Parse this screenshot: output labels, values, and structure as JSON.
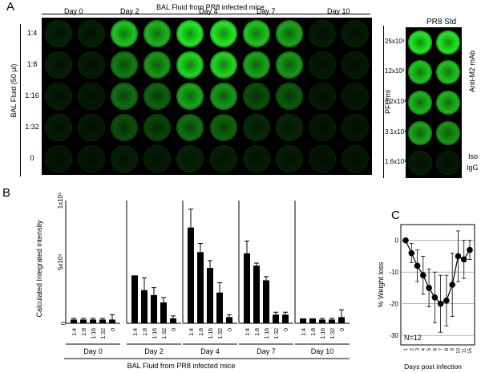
{
  "panels": {
    "a": "A",
    "b": "B",
    "c": "C"
  },
  "panel_a": {
    "header": "BAL Fluid from PR8 infected mice",
    "y_label": "BAL Fluid (50 µl)",
    "days": [
      "Day 0",
      "Day 2",
      "Day 4",
      "Day 7",
      "Day 10"
    ],
    "rows": [
      "1:4",
      "1:8",
      "1:16",
      "1:32",
      "0"
    ],
    "well_intensity": [
      [
        0.15,
        0.12,
        0.85,
        0.8,
        0.95,
        0.95,
        0.85,
        0.75,
        0.1,
        0.1
      ],
      [
        0.12,
        0.1,
        0.6,
        0.7,
        0.9,
        0.9,
        0.75,
        0.7,
        0.08,
        0.08
      ],
      [
        0.1,
        0.08,
        0.55,
        0.5,
        0.75,
        0.7,
        0.4,
        0.45,
        0.07,
        0.07
      ],
      [
        0.1,
        0.08,
        0.4,
        0.35,
        0.55,
        0.5,
        0.2,
        0.18,
        0.06,
        0.06
      ],
      [
        0.06,
        0.06,
        0.12,
        0.1,
        0.15,
        0.12,
        0.1,
        0.1,
        0.05,
        0.06
      ]
    ]
  },
  "panel_a_std": {
    "header": "PR8 Std",
    "pfu_label": "PFU/ml",
    "conc": [
      "25x10³",
      "12x10³",
      "6.2x10³",
      "3.1x10³",
      "1.6x10³"
    ],
    "anti_label": "Anti-M2 mAb",
    "iso_label_1": "Iso",
    "iso_label_2": "IgG",
    "well_intensity": [
      [
        0.95,
        0.95
      ],
      [
        0.85,
        0.85
      ],
      [
        0.8,
        0.8
      ],
      [
        0.75,
        0.7
      ],
      [
        0.1,
        0.08
      ]
    ]
  },
  "chart_data": [
    {
      "type": "bar",
      "ylabel": "Calculated Integrated intensity",
      "yticks": [
        "0",
        "5x10⁴",
        "1x10⁵"
      ],
      "ylim": [
        0,
        100000
      ],
      "xlabel": "BAL Fluid from PR8 infected mice",
      "categories": [
        "1:4",
        "1:8",
        "1:16",
        "1:32",
        "0"
      ],
      "groups": [
        {
          "name": "Day 0",
          "values": [
            3000,
            3000,
            3000,
            3000,
            3000
          ],
          "errors": [
            1000,
            1000,
            1000,
            1000,
            4000
          ]
        },
        {
          "name": "Day 2",
          "values": [
            39000,
            27000,
            23000,
            17000,
            4000
          ],
          "errors": [
            0,
            10000,
            6000,
            4000,
            2000
          ]
        },
        {
          "name": "Day 4",
          "values": [
            78000,
            58000,
            45000,
            25000,
            5000
          ],
          "errors": [
            15000,
            7000,
            6000,
            8000,
            2000
          ]
        },
        {
          "name": "Day 7",
          "values": [
            57000,
            47000,
            35000,
            7000,
            7000
          ],
          "errors": [
            10000,
            2000,
            3000,
            2000,
            2000
          ]
        },
        {
          "name": "Day 10",
          "values": [
            4000,
            4000,
            3000,
            3000,
            5000
          ],
          "errors": [
            0,
            0,
            1000,
            1000,
            6000
          ]
        }
      ]
    },
    {
      "type": "line",
      "ylabel": "% Weight loss",
      "xlabel": "Days post infection",
      "annotation": "N=12",
      "x": [
        1,
        2,
        3,
        4,
        5,
        6,
        7,
        8,
        9,
        10,
        11,
        15
      ],
      "y": [
        0,
        -4,
        -8,
        -11,
        -15,
        -18,
        -20,
        -19,
        -14,
        -5,
        -6,
        -3
      ],
      "errors": [
        0,
        3,
        5,
        6,
        6,
        8,
        9,
        8,
        10,
        8,
        6,
        3
      ],
      "yticks": [
        0,
        -10,
        -20,
        -30
      ],
      "ylim": [
        -33,
        5
      ]
    }
  ]
}
